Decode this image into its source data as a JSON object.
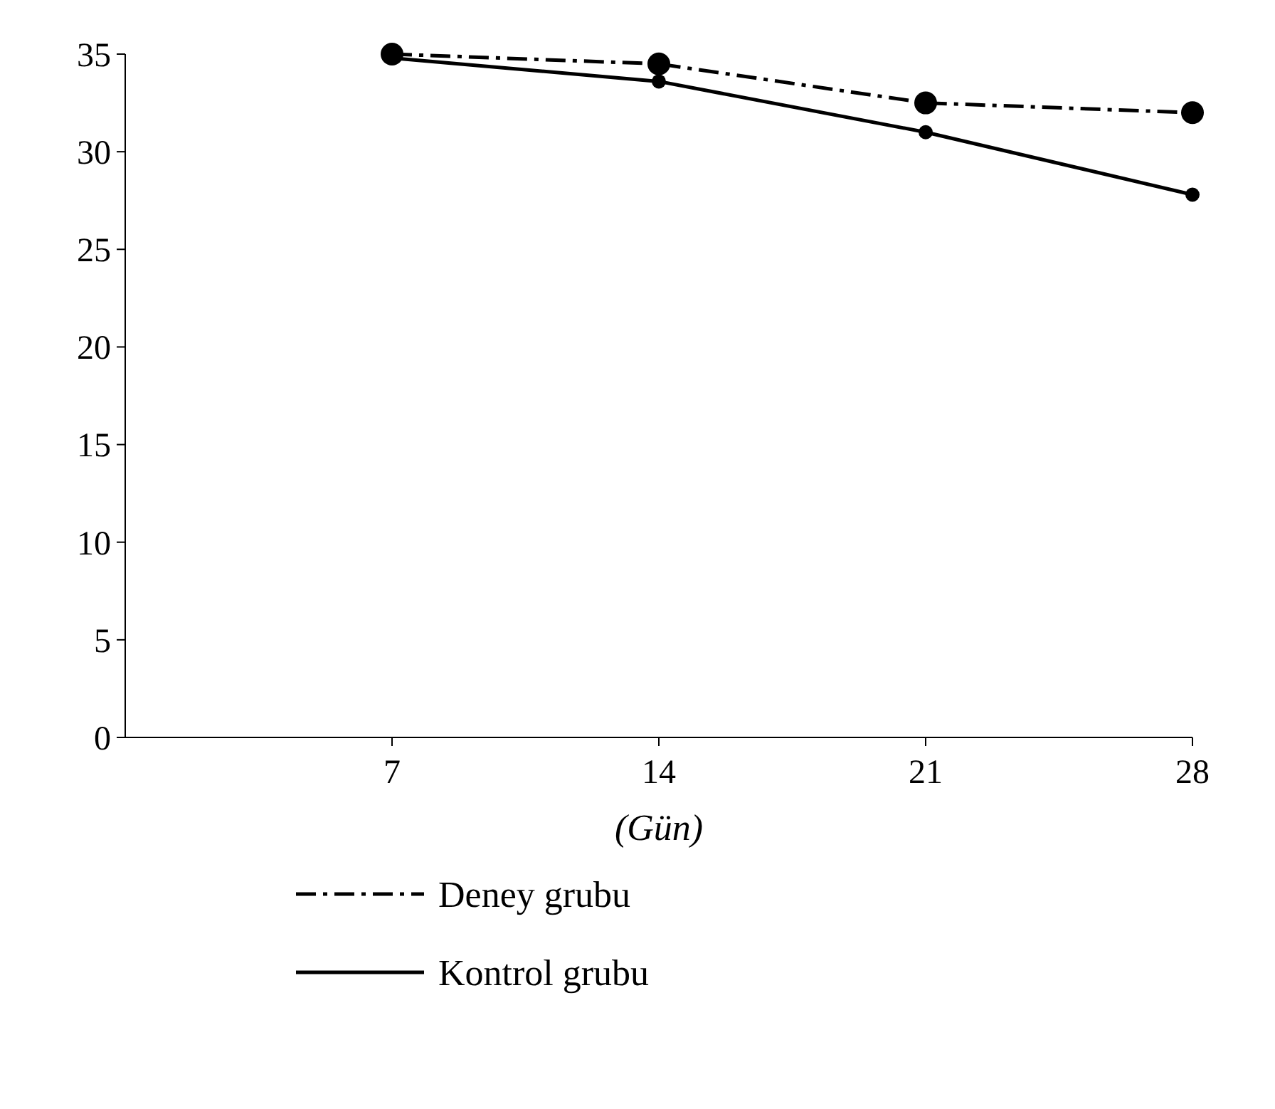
{
  "chart_data": {
    "type": "line",
    "xlabel": "(Gün)",
    "x": [
      7,
      14,
      21,
      28
    ],
    "xlim": [
      0,
      28
    ],
    "xticks": [
      7,
      14,
      21,
      28
    ],
    "ylim": [
      0,
      35
    ],
    "yticks": [
      0,
      5,
      10,
      15,
      20,
      25,
      30,
      35
    ],
    "marker": "circle",
    "legend": "bottom",
    "grid": false,
    "series": [
      {
        "name": "Deney grubu",
        "color": "#000000",
        "line_style": "dashdot",
        "values": [
          35,
          34.5,
          32.5,
          32
        ]
      },
      {
        "name": "Kontrol grubu",
        "color": "#000000",
        "line_style": "solid",
        "values": [
          34.8,
          33.6,
          31,
          27.8
        ]
      }
    ]
  }
}
